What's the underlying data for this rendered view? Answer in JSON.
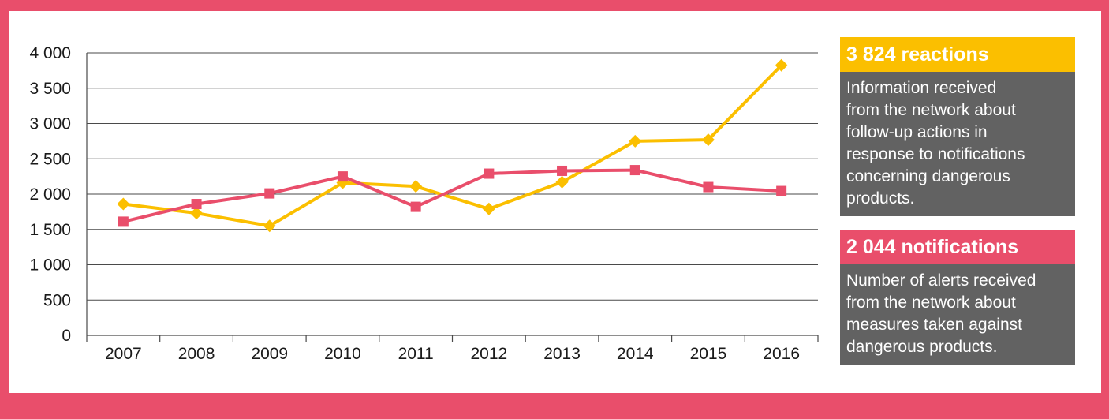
{
  "chart_data": {
    "type": "line",
    "categories": [
      "2007",
      "2008",
      "2009",
      "2010",
      "2011",
      "2012",
      "2013",
      "2014",
      "2015",
      "2016"
    ],
    "ylim": [
      0,
      4000
    ],
    "yticks": [
      "0",
      "500",
      "1 000",
      "1 500",
      "2 000",
      "2 500",
      "3 000",
      "3 500",
      "4 000"
    ],
    "grid": true,
    "series": [
      {
        "name": "reactions",
        "color": "#fbbf00",
        "marker": "diamond",
        "values": [
          1860,
          1730,
          1550,
          2160,
          2110,
          1790,
          2170,
          2750,
          2770,
          3824
        ]
      },
      {
        "name": "notifications",
        "color": "#e94e6b",
        "marker": "square",
        "values": [
          1610,
          1860,
          2010,
          2250,
          1820,
          2290,
          2330,
          2340,
          2100,
          2044
        ]
      }
    ]
  },
  "info": {
    "reactions": {
      "title": "3 824 reactions",
      "lines": [
        "Information received",
        "from the network about",
        "follow-up actions in",
        "response to notifications",
        "concerning dangerous",
        "products."
      ],
      "color": "#fbbf00"
    },
    "notifications": {
      "title": "2 044 notifications",
      "lines": [
        "Number of alerts received",
        "from the network about",
        "measures taken against",
        "dangerous products."
      ],
      "color": "#e94e6b"
    }
  }
}
